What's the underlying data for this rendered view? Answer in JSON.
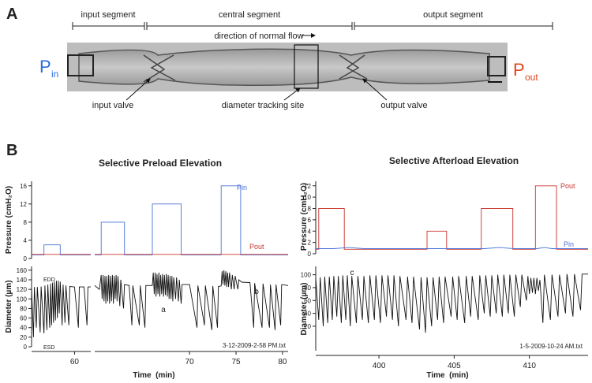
{
  "panel_a": {
    "label": "A",
    "segments": [
      "input segment",
      "central segment",
      "output segment"
    ],
    "flow_label": "direction of normal flow",
    "p_in": {
      "symbol": "P",
      "subscript": "in"
    },
    "p_out": {
      "symbol": "P",
      "subscript": "out"
    },
    "callouts": [
      "input valve",
      "diameter tracking site",
      "output valve"
    ]
  },
  "panel_b_label": "B",
  "chart_data": [
    {
      "type": "line",
      "title": "Selective Preload Elevation",
      "y_label": "Pressure (cmH₂O)",
      "xlim": [
        55.5,
        61.7
      ],
      "ylim": [
        0,
        17
      ],
      "yticks": [
        0,
        4,
        8,
        12,
        16
      ],
      "series": [
        {
          "color": "#4a72d6",
          "x": [
            55.5,
            56.8,
            56.8,
            58.5,
            58.5,
            61.7
          ],
          "values": [
            0.8,
            0.8,
            3,
            3,
            0.8,
            0.8
          ]
        },
        {
          "color": "#c8342c",
          "x": [
            55.5,
            61.7
          ],
          "values": [
            0.9,
            0.9
          ]
        }
      ]
    },
    {
      "type": "line",
      "xlim": [
        59.8,
        80.6
      ],
      "ylim": [
        0,
        17
      ],
      "series": [
        {
          "name": "Pin",
          "color": "#4a72d6",
          "x": [
            59.8,
            60.5,
            60.5,
            63.0,
            63.0,
            66.0,
            66.0,
            69.1,
            69.1,
            73.4,
            73.4,
            75.5,
            75.5,
            80.6
          ],
          "values": [
            0.8,
            0.8,
            8,
            8,
            0.8,
            0.8,
            12,
            12,
            0.8,
            0.8,
            16,
            16,
            0.8,
            0.8
          ]
        },
        {
          "name": "Pout",
          "color": "#c8342c",
          "x": [
            59.8,
            80.6
          ],
          "values": [
            0.9,
            0.9
          ]
        }
      ]
    },
    {
      "type": "line",
      "y_label": "Diameter (µm)",
      "xlim": [
        55.5,
        61.7
      ],
      "ylim": [
        0,
        168
      ],
      "yticks": [
        0,
        20,
        40,
        60,
        80,
        100,
        120,
        140,
        160
      ],
      "xticks": [
        60
      ],
      "annotations": [
        "EDD",
        "ESD"
      ],
      "series": [
        {
          "color": "#111111",
          "x": [
            55.5,
            55.7,
            55.8,
            56.0,
            56.1,
            56.4,
            56.5,
            56.8,
            56.9,
            57.1,
            57.2,
            57.4,
            57.5,
            57.6,
            57.7,
            57.8,
            57.9,
            58.0,
            58.1,
            58.2,
            58.3,
            58.4,
            58.5,
            58.7,
            58.8,
            59.0,
            59.1,
            59.4,
            59.5,
            60.0,
            60.4,
            60.5,
            61.0,
            61.3,
            61.4,
            61.7
          ],
          "values": [
            122,
            20,
            125,
            40,
            125,
            30,
            126,
            28,
            128,
            35,
            130,
            40,
            132,
            45,
            134,
            50,
            136,
            55,
            138,
            60,
            138,
            70,
            136,
            45,
            130,
            50,
            128,
            45,
            126,
            125,
            40,
            125,
            125,
            45,
            125,
            125
          ]
        }
      ]
    },
    {
      "type": "line",
      "x_label": "Time  (min)",
      "xlim": [
        59.8,
        80.6
      ],
      "ylim": [
        0,
        168
      ],
      "xticks": [
        70,
        75,
        80
      ],
      "annotations": [
        "a",
        "b",
        "3-12-2009-2-58 PM.txt"
      ],
      "series": [
        {
          "color": "#111111",
          "x": [
            59.8,
            60.3,
            60.5,
            60.6,
            60.7,
            60.8,
            60.9,
            61.0,
            61.1,
            61.2,
            61.3,
            61.4,
            61.5,
            61.6,
            61.7,
            61.8,
            61.9,
            62.0,
            62.1,
            62.2,
            62.3,
            62.5,
            62.6,
            62.9,
            63.0,
            63.5,
            63.8,
            63.9,
            64.6,
            64.7,
            65.2,
            65.3,
            66.0,
            66.1,
            66.2,
            66.3,
            66.4,
            66.5,
            66.6,
            66.7,
            66.8,
            66.9,
            67.0,
            67.1,
            67.2,
            67.3,
            67.4,
            67.5,
            67.6,
            67.7,
            67.8,
            67.9,
            68.0,
            68.1,
            68.2,
            68.3,
            68.5,
            68.6,
            68.8,
            68.9,
            69.1,
            69.2,
            70.0,
            70.8,
            70.9,
            71.6,
            71.7,
            72.4,
            72.5,
            73.0,
            73.1,
            73.4,
            73.5,
            73.6,
            73.7,
            73.8,
            73.9,
            74.0,
            74.1,
            74.2,
            74.3,
            74.5,
            74.6,
            74.8,
            74.9,
            75.2,
            75.3,
            75.6,
            76.5,
            76.9,
            77.0,
            77.8,
            77.9,
            78.6,
            78.7,
            79.2,
            79.3,
            79.8,
            79.9,
            80.6
          ],
          "values": [
            128,
            120,
            150,
            100,
            150,
            95,
            148,
            90,
            148,
            95,
            150,
            90,
            148,
            95,
            150,
            90,
            148,
            100,
            150,
            95,
            148,
            85,
            140,
            80,
            130,
            128,
            45,
            128,
            45,
            128,
            40,
            128,
            128,
            155,
            110,
            155,
            105,
            152,
            110,
            155,
            105,
            150,
            110,
            152,
            105,
            150,
            108,
            152,
            105,
            150,
            100,
            148,
            100,
            148,
            95,
            145,
            100,
            145,
            95,
            140,
            90,
            130,
            130,
            40,
            128,
            45,
            128,
            35,
            127,
            40,
            126,
            127,
            158,
            130,
            160,
            128,
            158,
            125,
            155,
            125,
            155,
            120,
            150,
            120,
            148,
            120,
            140,
            135,
            134,
            40,
            133,
            40,
            132,
            40,
            130,
            35,
            130,
            45,
            130,
            128
          ]
        }
      ]
    },
    {
      "type": "line",
      "title": "Selective Afterload Elevation",
      "y_label": "Pressure (cmH₂O)",
      "xlim": [
        395.8,
        413.9
      ],
      "ylim": [
        0,
        12.8
      ],
      "yticks": [
        0,
        2,
        4,
        6,
        8,
        10,
        12
      ],
      "series": [
        {
          "name": "Pout",
          "color": "#c8342c",
          "x": [
            395.8,
            396.0,
            396.0,
            397.7,
            397.7,
            403.2,
            403.2,
            404.5,
            404.5,
            406.8,
            406.8,
            408.9,
            408.9,
            410.4,
            410.4,
            411.8,
            411.8,
            413.9
          ],
          "values": [
            0.8,
            0.8,
            8,
            8,
            0.8,
            0.8,
            4,
            4,
            0.8,
            0.8,
            8,
            8,
            0.8,
            0.8,
            12,
            12,
            0.8,
            0.8
          ]
        },
        {
          "name": "Pin",
          "color": "#4a72d6",
          "x": [
            395.8,
            397.0,
            398.0,
            399.0,
            407.0,
            408.0,
            409.0,
            410.5,
            411.0,
            411.5,
            413.9
          ],
          "values": [
            0.9,
            0.9,
            1.1,
            0.9,
            0.9,
            1.1,
            0.9,
            0.9,
            1.1,
            0.9,
            0.9
          ]
        }
      ]
    },
    {
      "type": "line",
      "y_label": "Diameter (µm)",
      "x_label": "Time  (min)",
      "xlim": [
        395.8,
        413.9
      ],
      "ylim": [
        -18,
        113
      ],
      "yticks": [
        20,
        40,
        60,
        80,
        100
      ],
      "xticks": [
        400,
        405,
        410
      ],
      "annotations": [
        "c",
        "1-5-2009-10-24 AM.txt"
      ],
      "series": [
        {
          "color": "#111111",
          "x": [
            395.8,
            396.0,
            396.1,
            396.3,
            396.4,
            396.6,
            396.7,
            396.9,
            397.0,
            397.2,
            397.3,
            397.5,
            397.6,
            397.8,
            397.9,
            398.1,
            398.2,
            398.5,
            398.6,
            398.9,
            399.0,
            399.3,
            399.4,
            399.7,
            399.8,
            400.1,
            400.2,
            400.5,
            400.6,
            400.9,
            401.0,
            401.3,
            401.4,
            401.8,
            401.9,
            402.2,
            402.3,
            402.7,
            402.8,
            403.1,
            403.2,
            403.5,
            403.6,
            403.9,
            404.0,
            404.3,
            404.4,
            404.8,
            404.9,
            405.2,
            405.3,
            405.7,
            405.8,
            406.1,
            406.2,
            406.6,
            406.7,
            407.0,
            407.1,
            407.4,
            407.5,
            407.8,
            407.9,
            408.2,
            408.3,
            408.6,
            408.7,
            409.0,
            409.1,
            409.4,
            409.5,
            409.8,
            409.9,
            410.0,
            410.1,
            410.2,
            410.3,
            410.4,
            410.5,
            410.6,
            410.7,
            410.9,
            411.0,
            411.4,
            411.5,
            411.9,
            412.0,
            412.4,
            412.5,
            412.9,
            413.0,
            413.4,
            413.5,
            413.9
          ],
          "values": [
            95,
            30,
            96,
            20,
            97,
            25,
            97,
            30,
            98,
            35,
            98,
            25,
            99,
            30,
            99,
            20,
            98,
            25,
            98,
            30,
            98,
            25,
            99,
            30,
            99,
            25,
            99,
            35,
            99,
            30,
            99,
            20,
            98,
            30,
            97,
            25,
            97,
            15,
            96,
            10,
            96,
            20,
            96,
            30,
            97,
            25,
            97,
            35,
            97,
            30,
            98,
            25,
            98,
            35,
            98,
            30,
            99,
            40,
            99,
            35,
            99,
            40,
            100,
            35,
            100,
            40,
            100,
            35,
            100,
            50,
            100,
            60,
            98,
            70,
            95,
            72,
            95,
            70,
            95,
            75,
            92,
            25,
            100,
            30,
            100,
            35,
            100,
            40,
            101,
            35,
            101,
            45,
            101,
            101
          ]
        }
      ]
    }
  ]
}
